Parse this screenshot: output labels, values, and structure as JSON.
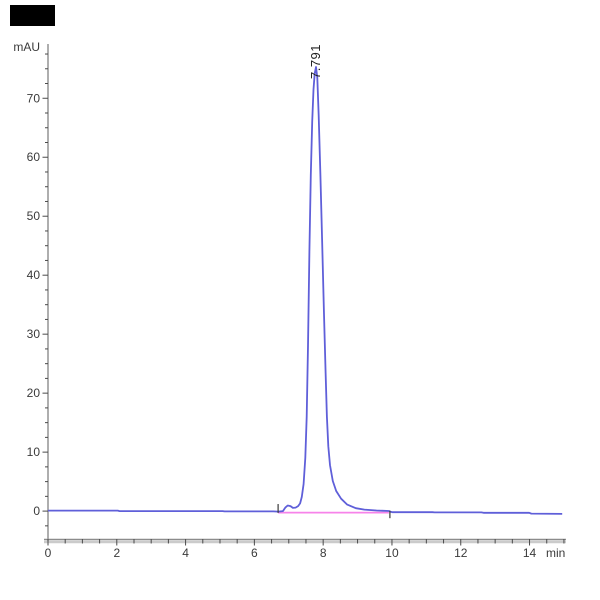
{
  "colors": {
    "trace": "#5f5fd9",
    "trace_halo": "#b9b9f2",
    "baseline_marker": "#f783ea",
    "axis": "#8c8c8c",
    "axis_shadow": "#cbcbcb",
    "tick": "#4a4a4a",
    "text": "#3a3a3a",
    "integration_tick": "#3a3a3a",
    "redaction_box": "#000000"
  },
  "chart_data": {
    "type": "line",
    "title": "",
    "xlabel": "min",
    "ylabel": "mAU",
    "xlim": [
      0,
      15.06
    ],
    "ylim": [
      -4.9,
      79.2
    ],
    "grid": false,
    "legend": "none",
    "x_ticks": [
      0,
      2,
      4,
      6,
      8,
      10,
      12,
      14
    ],
    "x_minor_step": 0.5,
    "y_ticks": [
      0,
      10,
      20,
      30,
      40,
      50,
      60,
      70
    ],
    "y_minor_step": 2.5,
    "peak": {
      "label": "7.791",
      "retention_time_min": 7.791,
      "height_mau": 75.3
    },
    "integration_markers": [
      6.69,
      9.94
    ],
    "series": [
      {
        "name": "integration-baseline",
        "color_key": "baseline_marker",
        "width": 1.8,
        "points": [
          [
            6.69,
            -0.25
          ],
          [
            9.91,
            -0.25
          ]
        ]
      },
      {
        "name": "uv-trace",
        "color_key": "trace",
        "width": 1.8,
        "points": [
          [
            0,
            0.08
          ],
          [
            2.03,
            0.08
          ],
          [
            2.08,
            0.0
          ],
          [
            5.08,
            0.0
          ],
          [
            5.13,
            -0.05
          ],
          [
            6.55,
            -0.05
          ],
          [
            6.69,
            -0.08
          ],
          [
            6.83,
            0.0
          ],
          [
            6.9,
            0.6
          ],
          [
            6.97,
            0.95
          ],
          [
            7.05,
            0.85
          ],
          [
            7.12,
            0.55
          ],
          [
            7.2,
            0.6
          ],
          [
            7.27,
            0.85
          ],
          [
            7.33,
            1.3
          ],
          [
            7.38,
            2.4
          ],
          [
            7.43,
            4.6
          ],
          [
            7.48,
            9.0
          ],
          [
            7.52,
            16
          ],
          [
            7.56,
            28
          ],
          [
            7.6,
            44
          ],
          [
            7.64,
            57
          ],
          [
            7.68,
            66
          ],
          [
            7.72,
            71.5
          ],
          [
            7.755,
            74.2
          ],
          [
            7.791,
            75.3
          ],
          [
            7.83,
            73.5
          ],
          [
            7.87,
            67
          ],
          [
            7.92,
            57
          ],
          [
            7.97,
            46
          ],
          [
            8.02,
            34
          ],
          [
            8.07,
            23.5
          ],
          [
            8.11,
            16
          ],
          [
            8.15,
            11
          ],
          [
            8.2,
            7.8
          ],
          [
            8.28,
            5.1
          ],
          [
            8.38,
            3.4
          ],
          [
            8.52,
            2.1
          ],
          [
            8.7,
            1.1
          ],
          [
            8.95,
            0.5
          ],
          [
            9.2,
            0.25
          ],
          [
            9.55,
            0.1
          ],
          [
            9.91,
            0.02
          ],
          [
            9.96,
            -0.1
          ],
          [
            10.02,
            -0.18
          ],
          [
            11.18,
            -0.18
          ],
          [
            11.24,
            -0.22
          ],
          [
            12.6,
            -0.22
          ],
          [
            12.66,
            -0.28
          ],
          [
            13.99,
            -0.28
          ],
          [
            14.05,
            -0.42
          ],
          [
            14.95,
            -0.48
          ]
        ]
      }
    ]
  }
}
